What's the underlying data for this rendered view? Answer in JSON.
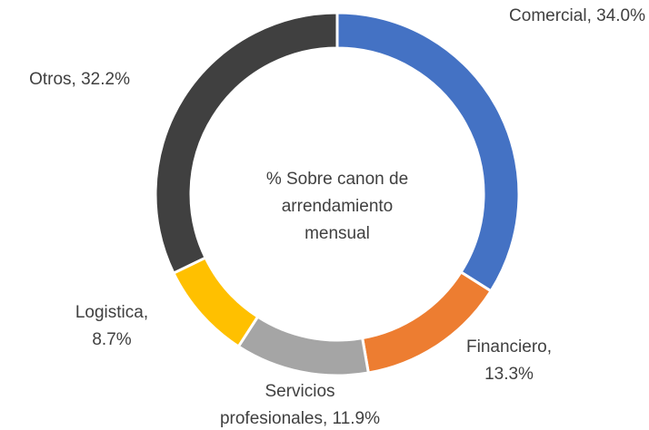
{
  "chart_data": {
    "type": "donut",
    "center_text": [
      "% Sobre canon de",
      "arrendamiento",
      "mensual"
    ],
    "categories": [
      "Comercial",
      "Financiero",
      "Servicios profesionales",
      "Logistica",
      "Otros"
    ],
    "values": [
      34.0,
      13.3,
      11.9,
      8.7,
      32.2
    ],
    "labels": [
      [
        "Comercial, 34.0%"
      ],
      [
        "Financiero,",
        "13.3%"
      ],
      [
        "Servicios",
        "profesionales, 11.9%"
      ],
      [
        "Logistica,",
        "8.7%"
      ],
      [
        "Otros, 32.2%"
      ]
    ],
    "colors": [
      "#4472c4",
      "#ed7d31",
      "#a5a5a5",
      "#ffc000",
      "#404040"
    ]
  }
}
